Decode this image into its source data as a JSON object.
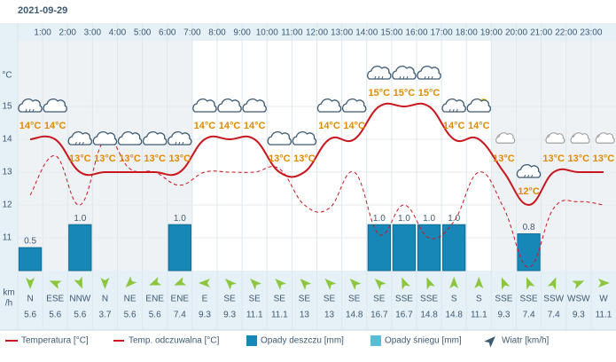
{
  "date": "2021-09-29",
  "chart_data": {
    "type": "weather",
    "categories": [
      null,
      "1:00",
      "2:00",
      "3:00",
      "4:00",
      "5:00",
      "6:00",
      "7:00",
      "8:00",
      "9:00",
      "10:00",
      "11:00",
      "12:00",
      "13:00",
      "14:00",
      "15:00",
      "16:00",
      "17:00",
      "18:00",
      "19:00",
      "20:00",
      "21:00",
      "22:00",
      "23:00"
    ],
    "y_unit": "°C",
    "ylim": [
      10,
      17
    ],
    "yticks": [
      11,
      12,
      13,
      14,
      15
    ],
    "y2lim": [
      0,
      5
    ],
    "series": [
      {
        "name": "Temperatura [°C]",
        "color": "#c8171e",
        "values": [
          14,
          14,
          13,
          13,
          13,
          13,
          13,
          14,
          14,
          14,
          13,
          13,
          14,
          14,
          15,
          15,
          15,
          14,
          14,
          13,
          12,
          13,
          13,
          13
        ],
        "value_labels": [
          "14°C",
          "14°C",
          "13°C",
          "13°C",
          "13°C",
          "13°C",
          "13°C",
          "14°C",
          "14°C",
          "14°C",
          "13°C",
          "13°C",
          "14°C",
          "14°C",
          "15°C",
          "15°C",
          "15°C",
          "14°C",
          "14°C",
          "13°C",
          "12°C",
          "13°C",
          "13°C",
          "13°C"
        ]
      },
      {
        "name": "Temp. odczuwalna [°C]",
        "color": "#c8171e",
        "dashed": true,
        "values": [
          12.3,
          13.5,
          12.0,
          14.0,
          13.1,
          13.0,
          12.6,
          13.0,
          13.0,
          13.0,
          13.1,
          12.0,
          11.9,
          13.0,
          11.1,
          12.0,
          11.0,
          11.5,
          13.0,
          11.9,
          10.1,
          11.9,
          12.1,
          12.0
        ]
      },
      {
        "name": "Opady deszczu [mm]",
        "color": "#1687b7",
        "axis": "y2",
        "values": [
          0.5,
          0,
          1.0,
          0,
          0,
          0,
          1.0,
          0,
          0,
          0,
          0,
          0,
          0,
          0,
          1.0,
          1.0,
          1.0,
          1.0,
          0,
          0,
          0.8,
          0,
          0,
          0
        ],
        "value_labels": [
          "0.5",
          null,
          "1.0",
          null,
          null,
          null,
          "1.0",
          null,
          null,
          null,
          null,
          null,
          null,
          null,
          "1.0",
          "1.0",
          "1.0",
          "1.0",
          null,
          null,
          "0.8",
          null,
          null,
          null
        ]
      },
      {
        "name": "Opady śniegu [mm]",
        "color": "#5bbcd6",
        "axis": "y2",
        "values": [
          0,
          0,
          0,
          0,
          0,
          0,
          0,
          0,
          0,
          0,
          0,
          0,
          0,
          0,
          0,
          0,
          0,
          0,
          0,
          0,
          0,
          0,
          0,
          0
        ]
      }
    ],
    "wind": {
      "name": "Wiatr [km/h]",
      "unit_lines": [
        "km",
        "/h"
      ],
      "directions": [
        "N",
        "ESE",
        "NNW",
        "N",
        "NE",
        "ENE",
        "ENE",
        "E",
        "SE",
        "SE",
        "SE",
        "SE",
        "SE",
        "SE",
        "SE",
        "SSE",
        "SSE",
        "S",
        "S",
        "SSE",
        "SSE",
        "SSW",
        "WSW",
        "W"
      ],
      "speeds": [
        5.6,
        5.6,
        5.6,
        3.7,
        5.6,
        5.6,
        7.4,
        9.3,
        9.3,
        11.1,
        11.1,
        13,
        13,
        14.8,
        16.7,
        16.7,
        14.8,
        14.8,
        11.1,
        9.3,
        7.4,
        7.4,
        9.3,
        11.1
      ]
    }
  }
}
